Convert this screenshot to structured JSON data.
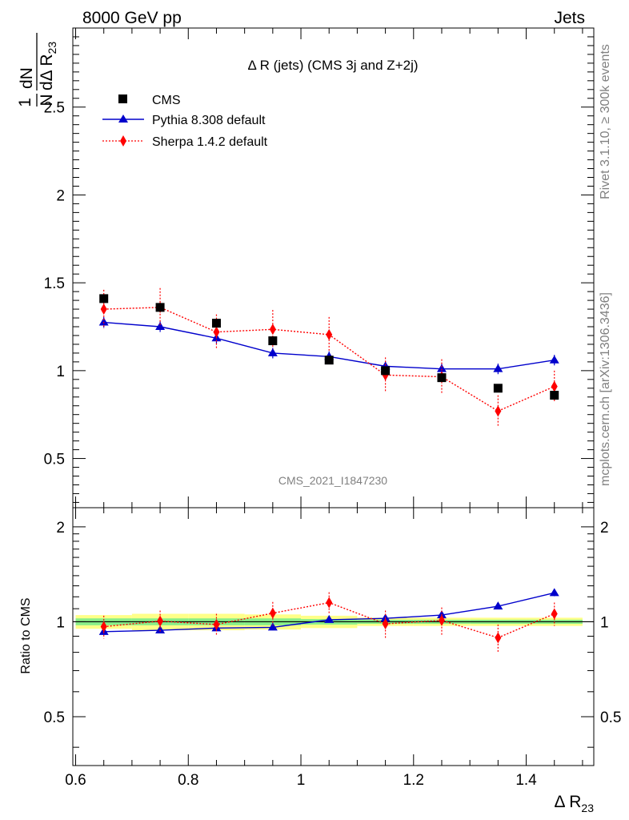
{
  "header": {
    "left": "8000 GeV pp",
    "right": "Jets"
  },
  "side_labels": {
    "rivet": "Rivet 3.1.10, ≥ 300k events",
    "mcplots": "mcplots.cern.ch [arXiv:1306.3436]"
  },
  "chart_data": [
    {
      "type": "scatter",
      "title": "Δ R (jets) (CMS 3j and Z+2j)",
      "watermark": "CMS_2021_I1847230",
      "ylabel": "1/N dN/dΔ R23",
      "xlabel": "Δ R23",
      "xlim": [
        0.595,
        1.52
      ],
      "ylim": [
        0.22,
        2.95
      ],
      "xticks": [
        "0.6",
        "0.8",
        "1",
        "1.2",
        "1.4"
      ],
      "yticks": [
        "0.5",
        "1",
        "1.5",
        "2",
        "2.5"
      ],
      "legend_position": "top-left",
      "series": [
        {
          "name": "CMS",
          "color": "#000000",
          "marker": "square",
          "x": [
            0.65,
            0.75,
            0.85,
            0.95,
            1.05,
            1.15,
            1.25,
            1.35,
            1.45
          ],
          "y": [
            1.41,
            1.36,
            1.27,
            1.17,
            1.06,
            1.0,
            0.96,
            0.9,
            0.86
          ]
        },
        {
          "name": "Pythia 8.308 default",
          "color": "#0000cc",
          "marker": "triangle",
          "line": "solid",
          "x": [
            0.65,
            0.75,
            0.85,
            0.95,
            1.05,
            1.15,
            1.25,
            1.35,
            1.45
          ],
          "y": [
            1.275,
            1.25,
            1.185,
            1.1,
            1.08,
            1.025,
            1.01,
            1.01,
            1.06
          ],
          "err": [
            0.03,
            0.03,
            0.03,
            0.03,
            0.03,
            0.03,
            0.03,
            0.03,
            0.03
          ]
        },
        {
          "name": "Sherpa 1.4.2 default",
          "color": "#ff0000",
          "marker": "diamond",
          "line": "dotted",
          "x": [
            0.65,
            0.75,
            0.85,
            0.95,
            1.05,
            1.15,
            1.25,
            1.35,
            1.45
          ],
          "y": [
            1.35,
            1.36,
            1.22,
            1.235,
            1.205,
            0.975,
            0.965,
            0.77,
            0.91
          ],
          "err": [
            0.11,
            0.11,
            0.1,
            0.11,
            0.1,
            0.1,
            0.1,
            0.09,
            0.09
          ]
        }
      ]
    },
    {
      "type": "scatter",
      "ylabel": "Ratio to CMS",
      "xlabel": "Δ R23",
      "xlim": [
        0.595,
        1.52
      ],
      "ylim": [
        0.35,
        2.3
      ],
      "xticks": [
        "0.6",
        "0.8",
        "1",
        "1.2",
        "1.4"
      ],
      "yticks": [
        "0.5",
        "1",
        "2"
      ],
      "band_inner_halfwidth": [
        0.025,
        0.025,
        0.025,
        0.025,
        0.02,
        0.015,
        0.015,
        0.015,
        0.015
      ],
      "band_outer_halfwidth": [
        0.05,
        0.06,
        0.06,
        0.055,
        0.045,
        0.03,
        0.03,
        0.03,
        0.03
      ],
      "series": [
        {
          "name": "Pythia 8.308 default",
          "color": "#0000cc",
          "marker": "triangle",
          "line": "solid",
          "x": [
            0.65,
            0.75,
            0.85,
            0.95,
            1.05,
            1.15,
            1.25,
            1.35,
            1.45
          ],
          "y": [
            0.93,
            0.94,
            0.955,
            0.96,
            1.015,
            1.025,
            1.05,
            1.12,
            1.235
          ],
          "err": [
            0.02,
            0.02,
            0.02,
            0.02,
            0.02,
            0.02,
            0.02,
            0.025,
            0.03
          ]
        },
        {
          "name": "Sherpa 1.4.2 default",
          "color": "#ff0000",
          "marker": "diamond",
          "line": "dotted",
          "x": [
            0.65,
            0.75,
            0.85,
            0.95,
            1.05,
            1.15,
            1.25,
            1.35,
            1.45
          ],
          "y": [
            0.965,
            1.005,
            0.98,
            1.065,
            1.15,
            0.985,
            1.01,
            0.89,
            1.06
          ],
          "err": [
            0.08,
            0.08,
            0.08,
            0.09,
            0.09,
            0.1,
            0.1,
            0.09,
            0.09
          ]
        }
      ]
    }
  ]
}
